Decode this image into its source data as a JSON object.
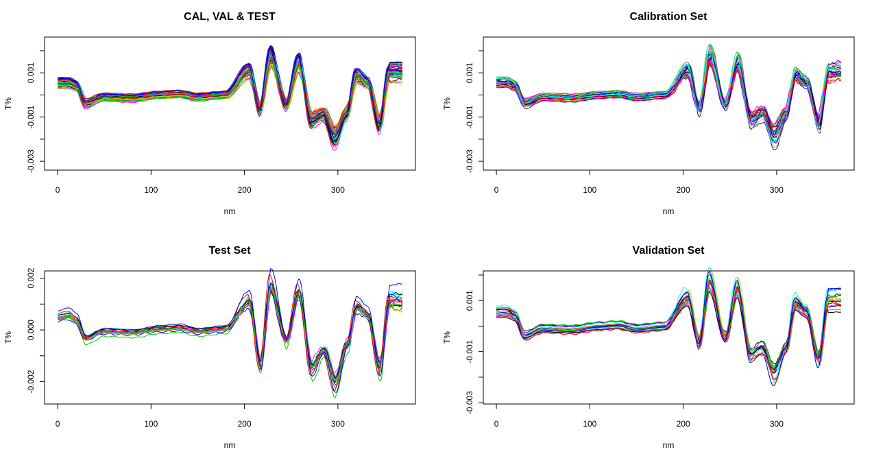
{
  "figure": {
    "colors": [
      "#000000",
      "#ff0000",
      "#00cd00",
      "#0000ff",
      "#00ffff",
      "#ff00ff",
      "#cdcd00",
      "#808080"
    ],
    "plots": [
      {
        "title": "CAL, VAL & TEST",
        "xlabel": "nm",
        "ylabel": "T%",
        "xlim": [
          -14,
          383
        ],
        "ylim": [
          -0.0034,
          0.00262
        ],
        "xticks": [
          {
            "v": 0,
            "label": "0"
          },
          {
            "v": 100,
            "label": "100"
          },
          {
            "v": 200,
            "label": "200"
          },
          {
            "v": 300,
            "label": "300"
          }
        ],
        "yticks": [
          {
            "v": 0.001,
            "label": "0.001"
          },
          {
            "v": -0.001,
            "label": "-0.001"
          },
          {
            "v": -0.003,
            "label": "-0.003"
          }
        ],
        "yminor": [
          0.002,
          0,
          -0.002
        ],
        "n_curves": 60,
        "seed": 11
      },
      {
        "title": "Calibration Set",
        "xlabel": "nm",
        "ylabel": "T%",
        "xlim": [
          -14,
          383
        ],
        "ylim": [
          -0.0034,
          0.00262
        ],
        "xticks": [
          {
            "v": 0,
            "label": "0"
          },
          {
            "v": 100,
            "label": "100"
          },
          {
            "v": 200,
            "label": "200"
          },
          {
            "v": 300,
            "label": "300"
          }
        ],
        "yticks": [
          {
            "v": 0.001,
            "label": "0.001"
          },
          {
            "v": -0.001,
            "label": "-0.001"
          },
          {
            "v": -0.003,
            "label": "-0.003"
          }
        ],
        "yminor": [
          0.002,
          0,
          -0.002
        ],
        "n_curves": 30,
        "seed": 23
      },
      {
        "title": "Test Set",
        "xlabel": "nm",
        "ylabel": "T%",
        "xlim": [
          -14,
          383
        ],
        "ylim": [
          -0.00286,
          0.00228
        ],
        "xticks": [
          {
            "v": 0,
            "label": "0"
          },
          {
            "v": 100,
            "label": "100"
          },
          {
            "v": 200,
            "label": "200"
          },
          {
            "v": 300,
            "label": "300"
          }
        ],
        "yticks": [
          {
            "v": 0.002,
            "label": "0.002"
          },
          {
            "v": 0,
            "label": "0.000"
          },
          {
            "v": -0.002,
            "label": "-0.002"
          }
        ],
        "yminor": [
          0.001,
          -0.001
        ],
        "n_curves": 20,
        "seed": 37
      },
      {
        "title": "Validation Set",
        "xlabel": "nm",
        "ylabel": "T%",
        "xlim": [
          -14,
          383
        ],
        "ylim": [
          -0.00305,
          0.00216
        ],
        "xticks": [
          {
            "v": 0,
            "label": "0"
          },
          {
            "v": 100,
            "label": "100"
          },
          {
            "v": 200,
            "label": "200"
          },
          {
            "v": 300,
            "label": "300"
          }
        ],
        "yticks": [
          {
            "v": 0.001,
            "label": "0.001"
          },
          {
            "v": -0.001,
            "label": "-0.001"
          },
          {
            "v": -0.003,
            "label": "-0.003"
          }
        ],
        "yminor": [
          0.002,
          0,
          -0.002
        ],
        "n_curves": 20,
        "seed": 51
      }
    ]
  },
  "chart_data": [
    {
      "type": "line",
      "title": "CAL, VAL & TEST",
      "xlabel": "nm",
      "ylabel": "T%",
      "xlim": [
        0,
        370
      ],
      "ylim": [
        -0.003,
        0.001
      ],
      "xticks": [
        0,
        100,
        200,
        300
      ],
      "yticks": [
        0.001,
        -0.001,
        -0.003
      ],
      "x": [
        0,
        12,
        20,
        30,
        50,
        80,
        110,
        130,
        150,
        180,
        205,
        217,
        228,
        245,
        258,
        272,
        285,
        297,
        310,
        320,
        332,
        345,
        355,
        370
      ],
      "series": [
        {
          "values": [
            0.0006,
            0.0006,
            0.00045,
            -0.0004,
            -0.0001,
            -0.00015,
            0.0,
            5e-05,
            -0.0001,
            0.0,
            0.0012,
            -0.0007,
            0.0019,
            -0.0005,
            0.0016,
            -0.0012,
            -0.0009,
            -0.002,
            -0.0009,
            0.001,
            0.0006,
            -0.0014,
            0.0011,
            0.0011
          ]
        }
      ]
    },
    {
      "type": "line",
      "title": "Calibration Set",
      "xlabel": "nm",
      "ylabel": "T%",
      "xlim": [
        0,
        370
      ],
      "ylim": [
        -0.003,
        0.001
      ],
      "xticks": [
        0,
        100,
        200,
        300
      ],
      "yticks": [
        0.001,
        -0.001,
        -0.003
      ],
      "x": [
        0,
        12,
        20,
        30,
        50,
        80,
        110,
        130,
        150,
        180,
        205,
        217,
        228,
        245,
        258,
        272,
        285,
        297,
        310,
        320,
        332,
        345,
        355,
        370
      ],
      "series": [
        {
          "values": [
            0.0006,
            0.0006,
            0.00045,
            -0.0004,
            -0.0001,
            -0.00015,
            0.0,
            5e-05,
            -0.0001,
            0.0,
            0.0012,
            -0.0007,
            0.0019,
            -0.0005,
            0.0016,
            -0.0012,
            -0.0009,
            -0.002,
            -0.0009,
            0.001,
            0.0006,
            -0.0014,
            0.0011,
            0.0011
          ]
        }
      ]
    },
    {
      "type": "line",
      "title": "Test Set",
      "xlabel": "nm",
      "ylabel": "T%",
      "xlim": [
        0,
        370
      ],
      "ylim": [
        -0.002,
        0.002
      ],
      "xticks": [
        0,
        100,
        200,
        300
      ],
      "yticks": [
        0.002,
        0.0,
        -0.002
      ],
      "x": [
        0,
        12,
        20,
        30,
        50,
        80,
        110,
        130,
        150,
        180,
        205,
        217,
        228,
        245,
        258,
        272,
        285,
        297,
        310,
        320,
        332,
        345,
        355,
        370
      ],
      "series": [
        {
          "values": [
            0.0005,
            0.0006,
            0.0004,
            -0.0004,
            -0.0001,
            -0.00015,
            0.0,
            5e-05,
            -0.0001,
            0.0,
            0.0012,
            -0.0015,
            0.0019,
            -0.0005,
            0.0016,
            -0.0017,
            -0.0009,
            -0.0023,
            -0.0007,
            0.001,
            0.0006,
            -0.0017,
            0.0012,
            0.0012
          ]
        }
      ]
    },
    {
      "type": "line",
      "title": "Validation Set",
      "xlabel": "nm",
      "ylabel": "T%",
      "xlim": [
        0,
        370
      ],
      "ylim": [
        -0.003,
        0.001
      ],
      "xticks": [
        0,
        100,
        200,
        300
      ],
      "yticks": [
        0.001,
        -0.001,
        -0.003
      ],
      "x": [
        0,
        12,
        20,
        30,
        50,
        80,
        110,
        130,
        150,
        180,
        205,
        217,
        228,
        245,
        258,
        272,
        285,
        297,
        310,
        320,
        332,
        345,
        355,
        370
      ],
      "series": [
        {
          "values": [
            0.0006,
            0.0006,
            0.00045,
            -0.0004,
            -0.0001,
            -0.00015,
            0.0,
            5e-05,
            -0.0001,
            0.0,
            0.0012,
            -0.0007,
            0.0019,
            -0.0005,
            0.0016,
            -0.0012,
            -0.0009,
            -0.002,
            -0.0009,
            0.001,
            0.0006,
            -0.0014,
            0.0011,
            0.0011
          ]
        }
      ]
    }
  ]
}
